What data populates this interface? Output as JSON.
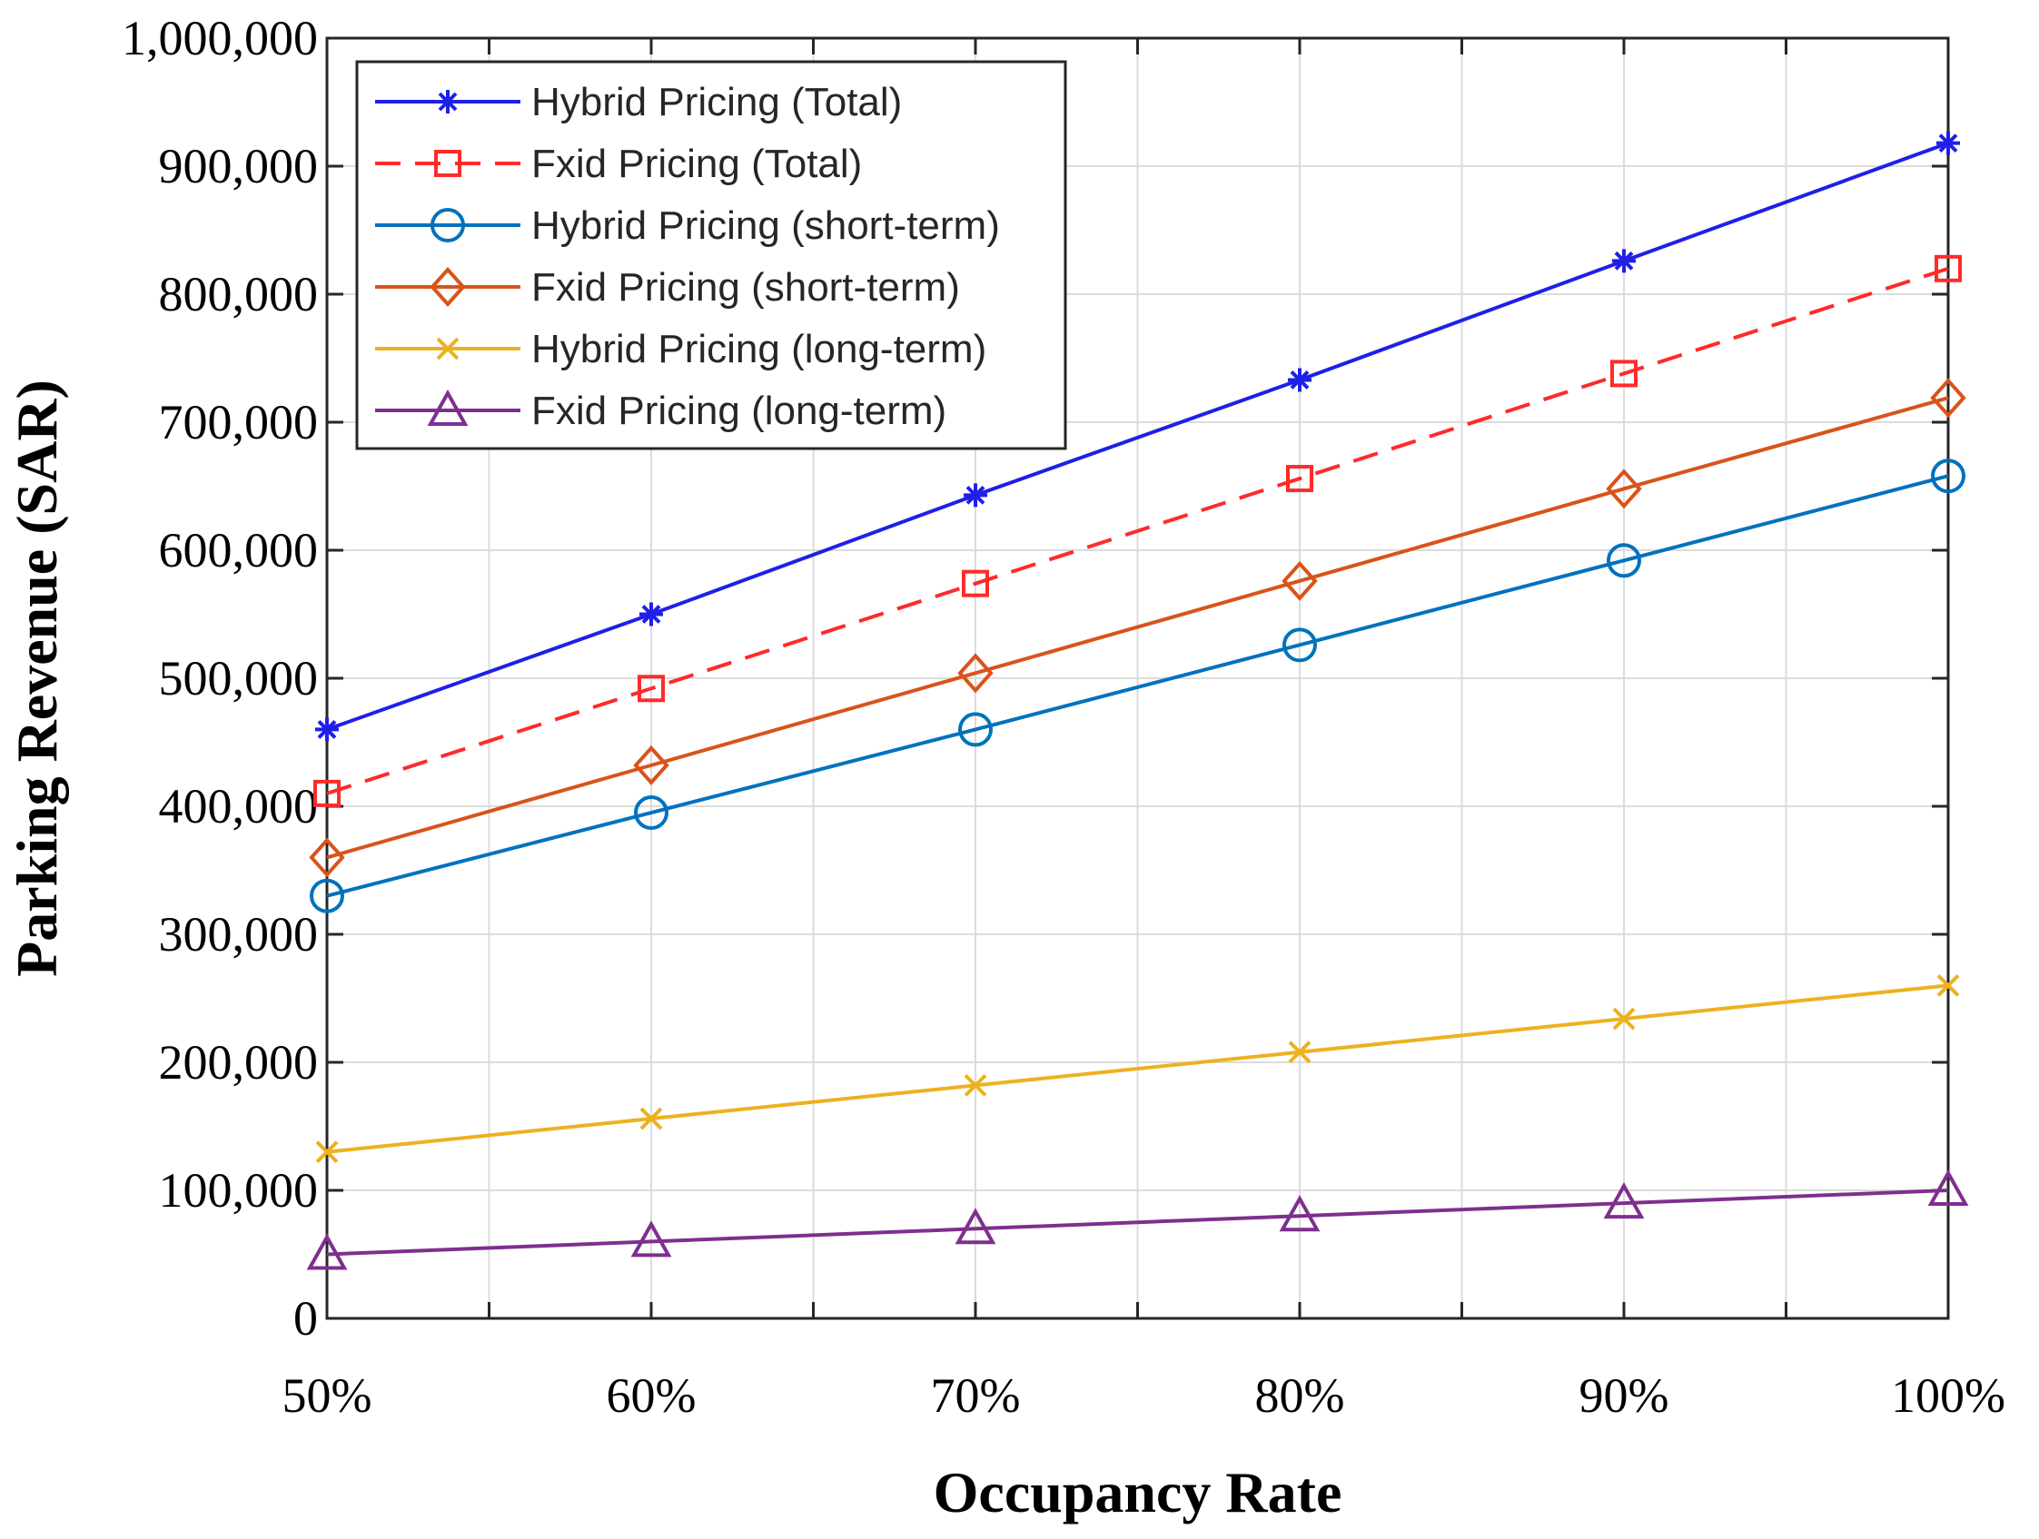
{
  "chart_data": {
    "type": "line",
    "title": "",
    "xlabel": "Occupancy Rate",
    "ylabel": "Parking Revenue (SAR)",
    "x": [
      50,
      60,
      70,
      80,
      90,
      100
    ],
    "x_tick_labels": [
      "50%",
      "60%",
      "70%",
      "80%",
      "90%",
      "100%"
    ],
    "x_minor_ticks": [
      55,
      65,
      75,
      85,
      95
    ],
    "xlim": [
      50,
      100
    ],
    "ylim": [
      0,
      1000000
    ],
    "y_ticks": [
      0,
      100000,
      200000,
      300000,
      400000,
      500000,
      600000,
      700000,
      800000,
      900000,
      1000000
    ],
    "y_tick_labels": [
      "0",
      "100,000",
      "200,000",
      "300,000",
      "400,000",
      "500,000",
      "600,000",
      "700,000",
      "800,000",
      "900,000",
      "1,000,000"
    ],
    "grid": true,
    "legend_position": "top-left",
    "series": [
      {
        "name": "Hybrid Pricing (Total)",
        "color": "#1f1fe8",
        "marker": "asterisk",
        "dash": "solid",
        "values": [
          460000,
          550000,
          643000,
          733000,
          826000,
          918000
        ]
      },
      {
        "name": "Fxid Pricing (Total)",
        "color": "#ff2a2a",
        "marker": "square",
        "dash": "dashed",
        "values": [
          410000,
          492000,
          574000,
          656000,
          738000,
          820000
        ]
      },
      {
        "name": "Hybrid Pricing (short-term)",
        "color": "#0072bd",
        "marker": "circle",
        "dash": "solid",
        "values": [
          330000,
          395000,
          460000,
          526000,
          592000,
          658000
        ]
      },
      {
        "name": "Fxid Pricing (short-term)",
        "color": "#d95319",
        "marker": "diamond",
        "dash": "solid",
        "values": [
          360000,
          432000,
          504000,
          576000,
          648000,
          719000
        ]
      },
      {
        "name": "Hybrid Pricing (long-term)",
        "color": "#edb120",
        "marker": "x",
        "dash": "solid",
        "values": [
          130000,
          156000,
          182000,
          208000,
          234000,
          260000
        ]
      },
      {
        "name": "Fxid Pricing (long-term)",
        "color": "#7e2f8e",
        "marker": "triangle",
        "dash": "solid",
        "values": [
          50000,
          60000,
          70000,
          80000,
          90000,
          100000
        ]
      }
    ]
  }
}
